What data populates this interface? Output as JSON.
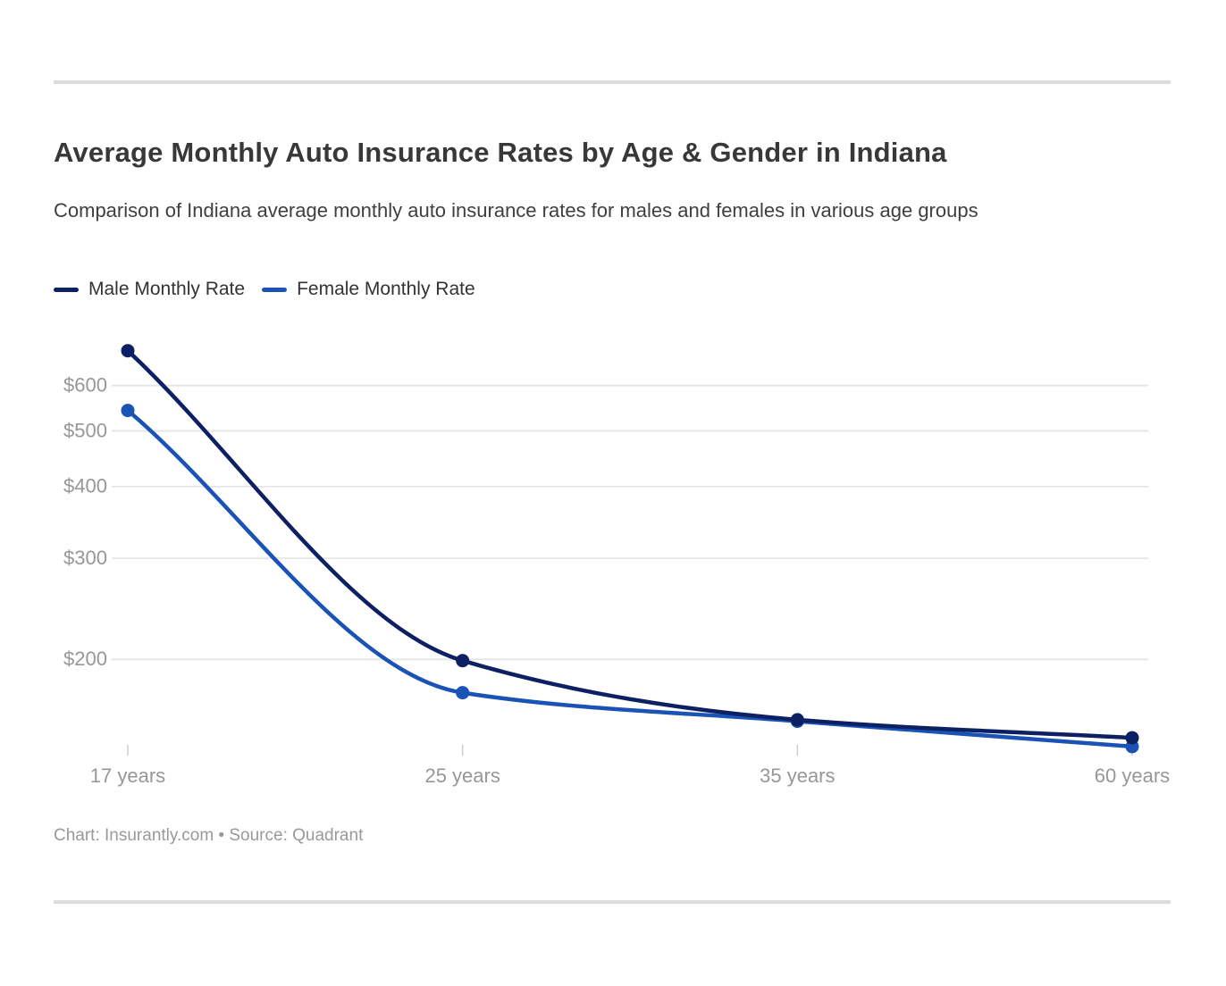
{
  "page": {
    "title": "Average Monthly Auto Insurance Rates by Age & Gender in Indiana",
    "subtitle": "Comparison of Indiana average monthly auto insurance rates for males and females in various age groups",
    "footer": "Chart: Insurantly.com • Source: Quadrant"
  },
  "colors": {
    "male_line": "#0c2063",
    "female_line": "#1a52b5",
    "gridline": "#e5e5e5",
    "tick_mark": "#cccccc",
    "axis_label": "#979797",
    "divider": "#dcdcdc"
  },
  "chart_data": {
    "type": "line",
    "title": "Average Monthly Auto Insurance Rates by Age & Gender in Indiana",
    "subtitle": "Comparison of Indiana average monthly auto insurance rates for males and females in various age groups",
    "categories": [
      "17 years",
      "25 years",
      "35 years",
      "60 years"
    ],
    "series": [
      {
        "name": "Male Monthly Rate",
        "color": "#0c2063",
        "values": [
          690,
          199,
          157,
          146
        ]
      },
      {
        "name": "Female Monthly Rate",
        "color": "#1a52b5",
        "values": [
          543,
          175,
          156,
          141
        ]
      }
    ],
    "y_axis": {
      "scale": "log",
      "tick_values": [
        600,
        500,
        400,
        300,
        200
      ],
      "tick_labels": [
        "$600",
        "$500",
        "$400",
        "$300",
        "$200"
      ],
      "range_approx": [
        135,
        700
      ]
    },
    "xlabel": "",
    "ylabel": "",
    "grid": "horizontal",
    "legend_position": "top-left",
    "point_markers": true,
    "smooth_curves": true
  }
}
